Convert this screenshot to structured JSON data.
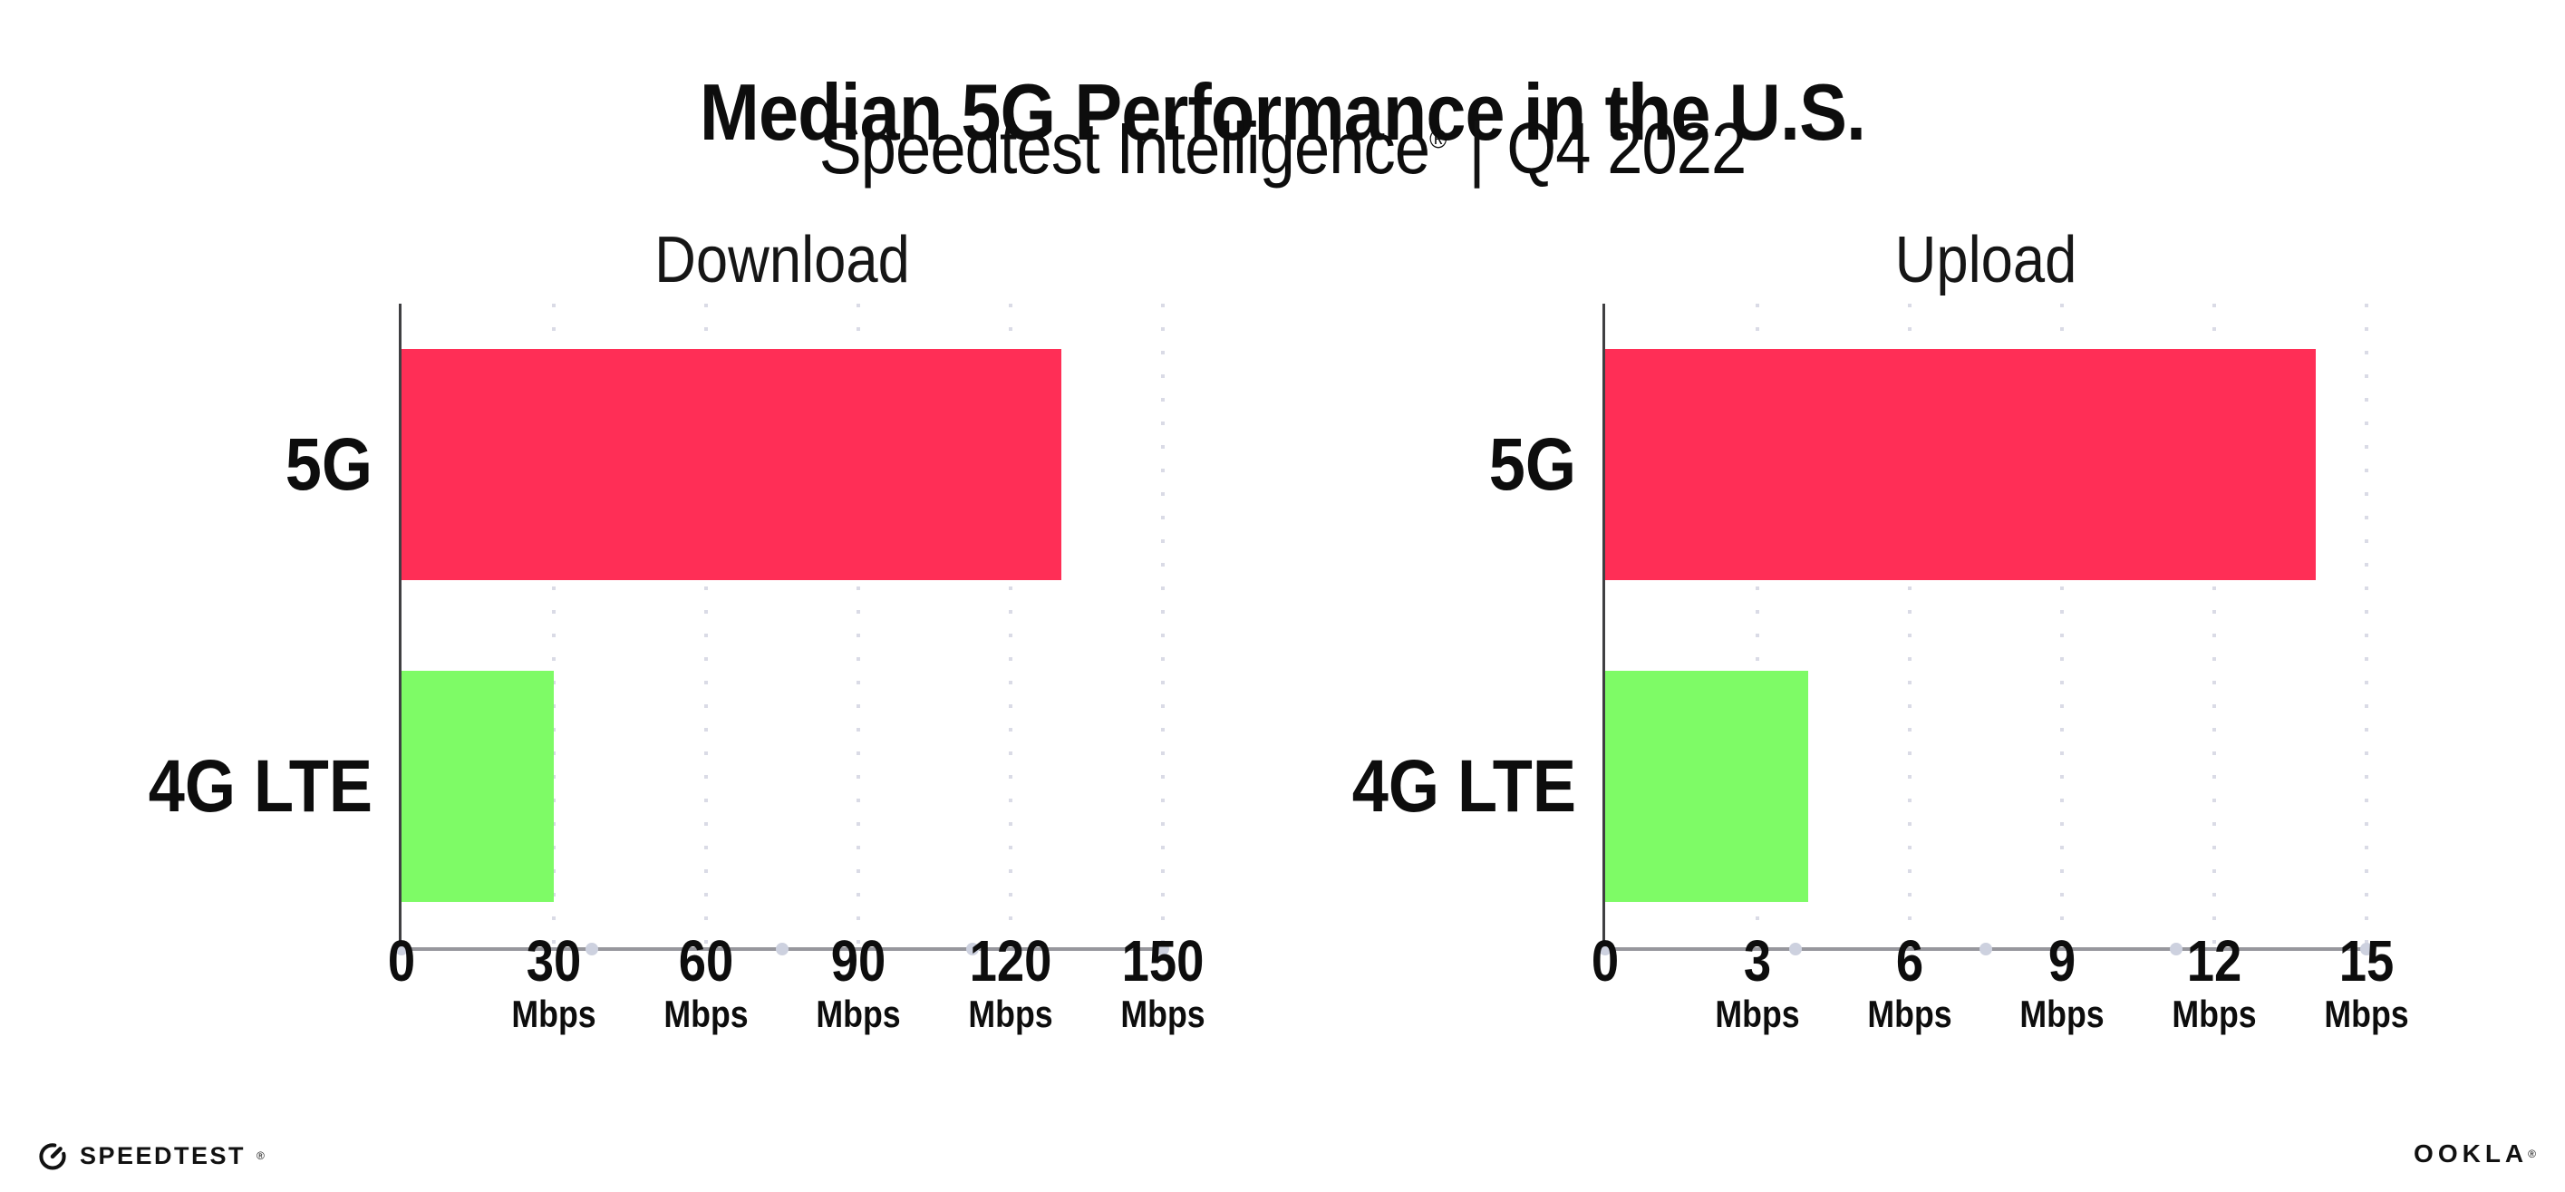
{
  "header": {
    "title": "Median 5G Performance in the U.S.",
    "subtitle_brand": "Speedtest Intelligence",
    "subtitle_mark": "®",
    "subtitle_separator": "|",
    "subtitle_period": "Q4 2022"
  },
  "chart_data": [
    {
      "type": "bar",
      "orientation": "horizontal",
      "title": "Download",
      "categories": [
        "5G",
        "4G LTE"
      ],
      "values": [
        130,
        30
      ],
      "unit": "Mbps",
      "xlim": [
        0,
        150
      ],
      "xticks": [
        0,
        30,
        60,
        90,
        120,
        150
      ],
      "tick_unit_label": "Mbps",
      "bar_colors": [
        "#FF2E56",
        "#7EFB66"
      ],
      "grid": "dotted-vertical-at-ticks",
      "legend": "none",
      "xlabel": "",
      "ylabel": ""
    },
    {
      "type": "bar",
      "orientation": "horizontal",
      "title": "Upload",
      "categories": [
        "5G",
        "4G LTE"
      ],
      "values": [
        14,
        4
      ],
      "unit": "Mbps",
      "xlim": [
        0,
        15
      ],
      "xticks": [
        0,
        3,
        6,
        9,
        12,
        15
      ],
      "tick_unit_label": "Mbps",
      "bar_colors": [
        "#FF2E56",
        "#7EFB66"
      ],
      "grid": "dotted-vertical-at-ticks",
      "legend": "none",
      "xlabel": "",
      "ylabel": ""
    }
  ],
  "footer": {
    "speedtest_label": "SPEEDTEST",
    "speedtest_mark": "®",
    "ookla_label": "OOKLA",
    "ookla_mark": "®"
  },
  "colors": {
    "bar_5g": "#FF2E56",
    "bar_4g_lte": "#7EFB66",
    "axis_vertical_line": "#3F3F42",
    "axis_baseline": "#97979D",
    "gridline_dots": "#DADBE6",
    "baseline_dots": "#CDD1DF",
    "text": "#0D0D0D",
    "background": "#FFFFFF"
  }
}
